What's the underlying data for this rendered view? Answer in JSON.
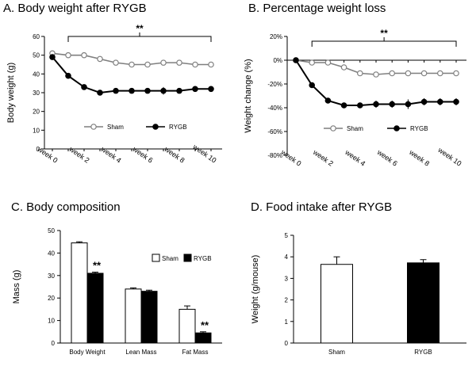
{
  "chart_data": [
    {
      "panel": "A",
      "type": "line",
      "title": "A. Body weight after RYGB",
      "ylabel": "Body weight (g)",
      "xlabel": "",
      "ylim": [
        0,
        60
      ],
      "yticks": [
        0,
        10,
        20,
        30,
        40,
        50,
        60
      ],
      "categories": [
        "week 0",
        "week 2",
        "week 4",
        "week 6",
        "week 8",
        "week 10"
      ],
      "x": [
        0,
        1,
        2,
        3,
        4,
        5,
        6,
        7,
        8,
        9,
        10
      ],
      "series": [
        {
          "name": "Sham",
          "marker": "open-circle",
          "color": "#7f7f7f",
          "values": [
            51,
            50,
            50,
            48,
            46,
            45,
            45,
            46,
            46,
            45,
            45
          ],
          "errors": [
            1,
            1,
            1,
            1,
            1,
            1,
            1,
            1,
            1,
            1,
            1
          ]
        },
        {
          "name": "RYGB",
          "marker": "filled-circle",
          "color": "#000000",
          "values": [
            49,
            39,
            33,
            30,
            31,
            31,
            31,
            31,
            31,
            32,
            32
          ],
          "errors": [
            1,
            1,
            1,
            1,
            1,
            1,
            1,
            2,
            1,
            1,
            1
          ]
        }
      ],
      "significance": "**",
      "legend": "bottom"
    },
    {
      "panel": "B",
      "type": "line",
      "title": "B. Percentage weight loss",
      "ylabel": "Weight change (%)",
      "xlabel": "",
      "ylim": [
        -80,
        20
      ],
      "yticks": [
        20,
        0,
        -20,
        -40,
        -60,
        -80
      ],
      "ytick_labels": [
        "20%",
        "0%",
        "-20%",
        "-40%",
        "-60%",
        "-80%"
      ],
      "categories": [
        "week 0",
        "week 2",
        "week 4",
        "week 6",
        "week 8",
        "week 10"
      ],
      "x": [
        0,
        1,
        2,
        3,
        4,
        5,
        6,
        7,
        8,
        9,
        10
      ],
      "series": [
        {
          "name": "Sham",
          "marker": "open-circle",
          "color": "#7f7f7f",
          "values": [
            0,
            -2,
            -2,
            -6,
            -11,
            -12,
            -11,
            -11,
            -11,
            -11,
            -11
          ],
          "errors": [
            1,
            1,
            1,
            1,
            1,
            1,
            1,
            1,
            1,
            1,
            1
          ]
        },
        {
          "name": "RYGB",
          "marker": "filled-circle",
          "color": "#000000",
          "values": [
            0,
            -21,
            -34,
            -38,
            -38,
            -37,
            -37,
            -37,
            -35,
            -35,
            -35
          ],
          "errors": [
            1,
            2,
            2,
            2,
            2,
            3,
            3,
            4,
            3,
            3,
            3
          ]
        }
      ],
      "significance": "**",
      "legend": "bottom"
    },
    {
      "panel": "C",
      "type": "bar",
      "title": "C. Body composition",
      "ylabel": "Mass (g)",
      "xlabel": "",
      "ylim": [
        0,
        50
      ],
      "yticks": [
        0,
        10,
        20,
        30,
        40,
        50
      ],
      "categories": [
        "Body Weight",
        "Lean Mass",
        "Fat Mass"
      ],
      "series": [
        {
          "name": "Sham",
          "fill": "#ffffff",
          "values": [
            44.5,
            24,
            15
          ],
          "errors": [
            0.5,
            0.5,
            1.5
          ]
        },
        {
          "name": "RYGB",
          "fill": "#000000",
          "values": [
            31,
            23,
            4.5
          ],
          "errors": [
            0.5,
            0.5,
            0.5
          ]
        }
      ],
      "significance": [
        "**",
        "",
        "**"
      ],
      "legend": "top-right"
    },
    {
      "panel": "D",
      "type": "bar",
      "title": "D. Food intake after RYGB",
      "ylabel": "Weight (g/mouse)",
      "xlabel": "",
      "ylim": [
        0,
        5
      ],
      "yticks": [
        0,
        1,
        2,
        3,
        4,
        5
      ],
      "categories": [
        "Sham",
        "RYGB"
      ],
      "series": [
        {
          "name": "",
          "fills": [
            "#ffffff",
            "#000000"
          ],
          "values": [
            3.65,
            3.72
          ],
          "errors": [
            0.35,
            0.15
          ]
        }
      ]
    }
  ]
}
